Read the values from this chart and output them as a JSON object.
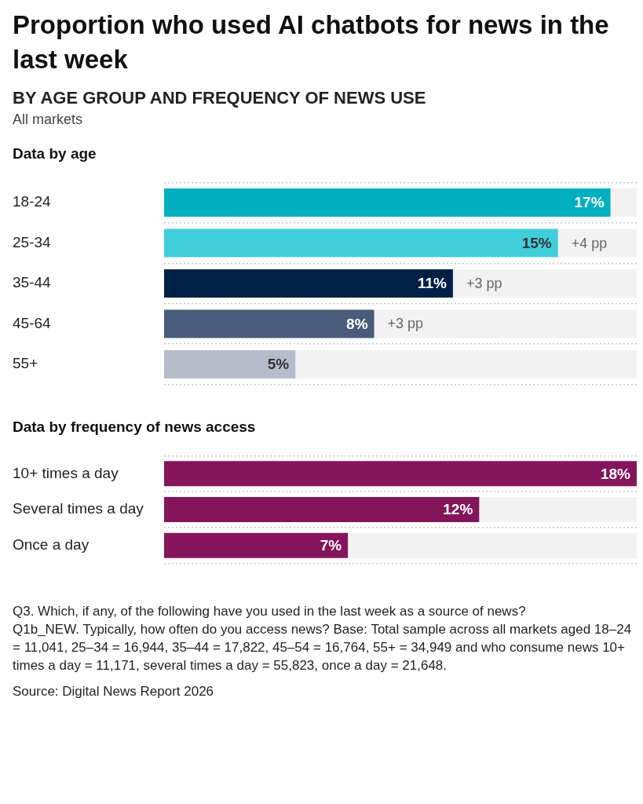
{
  "chart_data": [
    {
      "type": "other",
      "title": "Proportion who used AI chatbots for news in the last week",
      "subtitle": "BY AGE GROUP AND FREQUENCY OF NEWS USE",
      "annotations": [
        "All markets"
      ]
    },
    {
      "type": "bar",
      "orientation": "horizontal",
      "title": "Data by age",
      "categories": [
        "18-24",
        "25-34",
        "35-44",
        "45-64",
        "55+"
      ],
      "values": [
        17,
        15,
        11,
        8,
        5
      ],
      "colors": [
        "#00b0bf",
        "#41cedb",
        "#002046",
        "#4a5c7c",
        "#b6bcc9"
      ],
      "value_labels": [
        "17%",
        "15%",
        "11%",
        "8%",
        "5%"
      ],
      "grid": "y",
      "annotations": [
        {
          "text": "+4 pp",
          "x": 15,
          "y": "25-34"
        },
        {
          "text": "+3 pp",
          "x": 11,
          "y": "35-44"
        },
        {
          "text": "+3 pp",
          "x": 8,
          "y": "45-64"
        }
      ]
    },
    {
      "type": "bar",
      "orientation": "horizontal",
      "title": "Data by frequency of news access",
      "categories": [
        "10+ times a day",
        "Several times a day",
        "Once a day"
      ],
      "values": [
        18,
        12,
        7
      ],
      "colors": [
        "#84155b",
        "#84155b",
        "#84155b"
      ],
      "value_labels": [
        "18%",
        "12%",
        "7%"
      ],
      "grid": "y",
      "annotations": [
        "Q3. Which, if any, of the following have you used in the last week as a source of news?",
        "Q1b_NEW. Typically, how often do you access news? Base: Total sample across all markets aged 18–24 = 11,041, 25–34 = 16,944, 35–44 = 17,822, 45–54 = 16,764, 55+ = 34,949 and who consume news 10+ times a day = 11,171, several times a day = 55,823, once a day = 21,648.",
        "Source: Digital News Report 2026"
      ]
    }
  ]
}
